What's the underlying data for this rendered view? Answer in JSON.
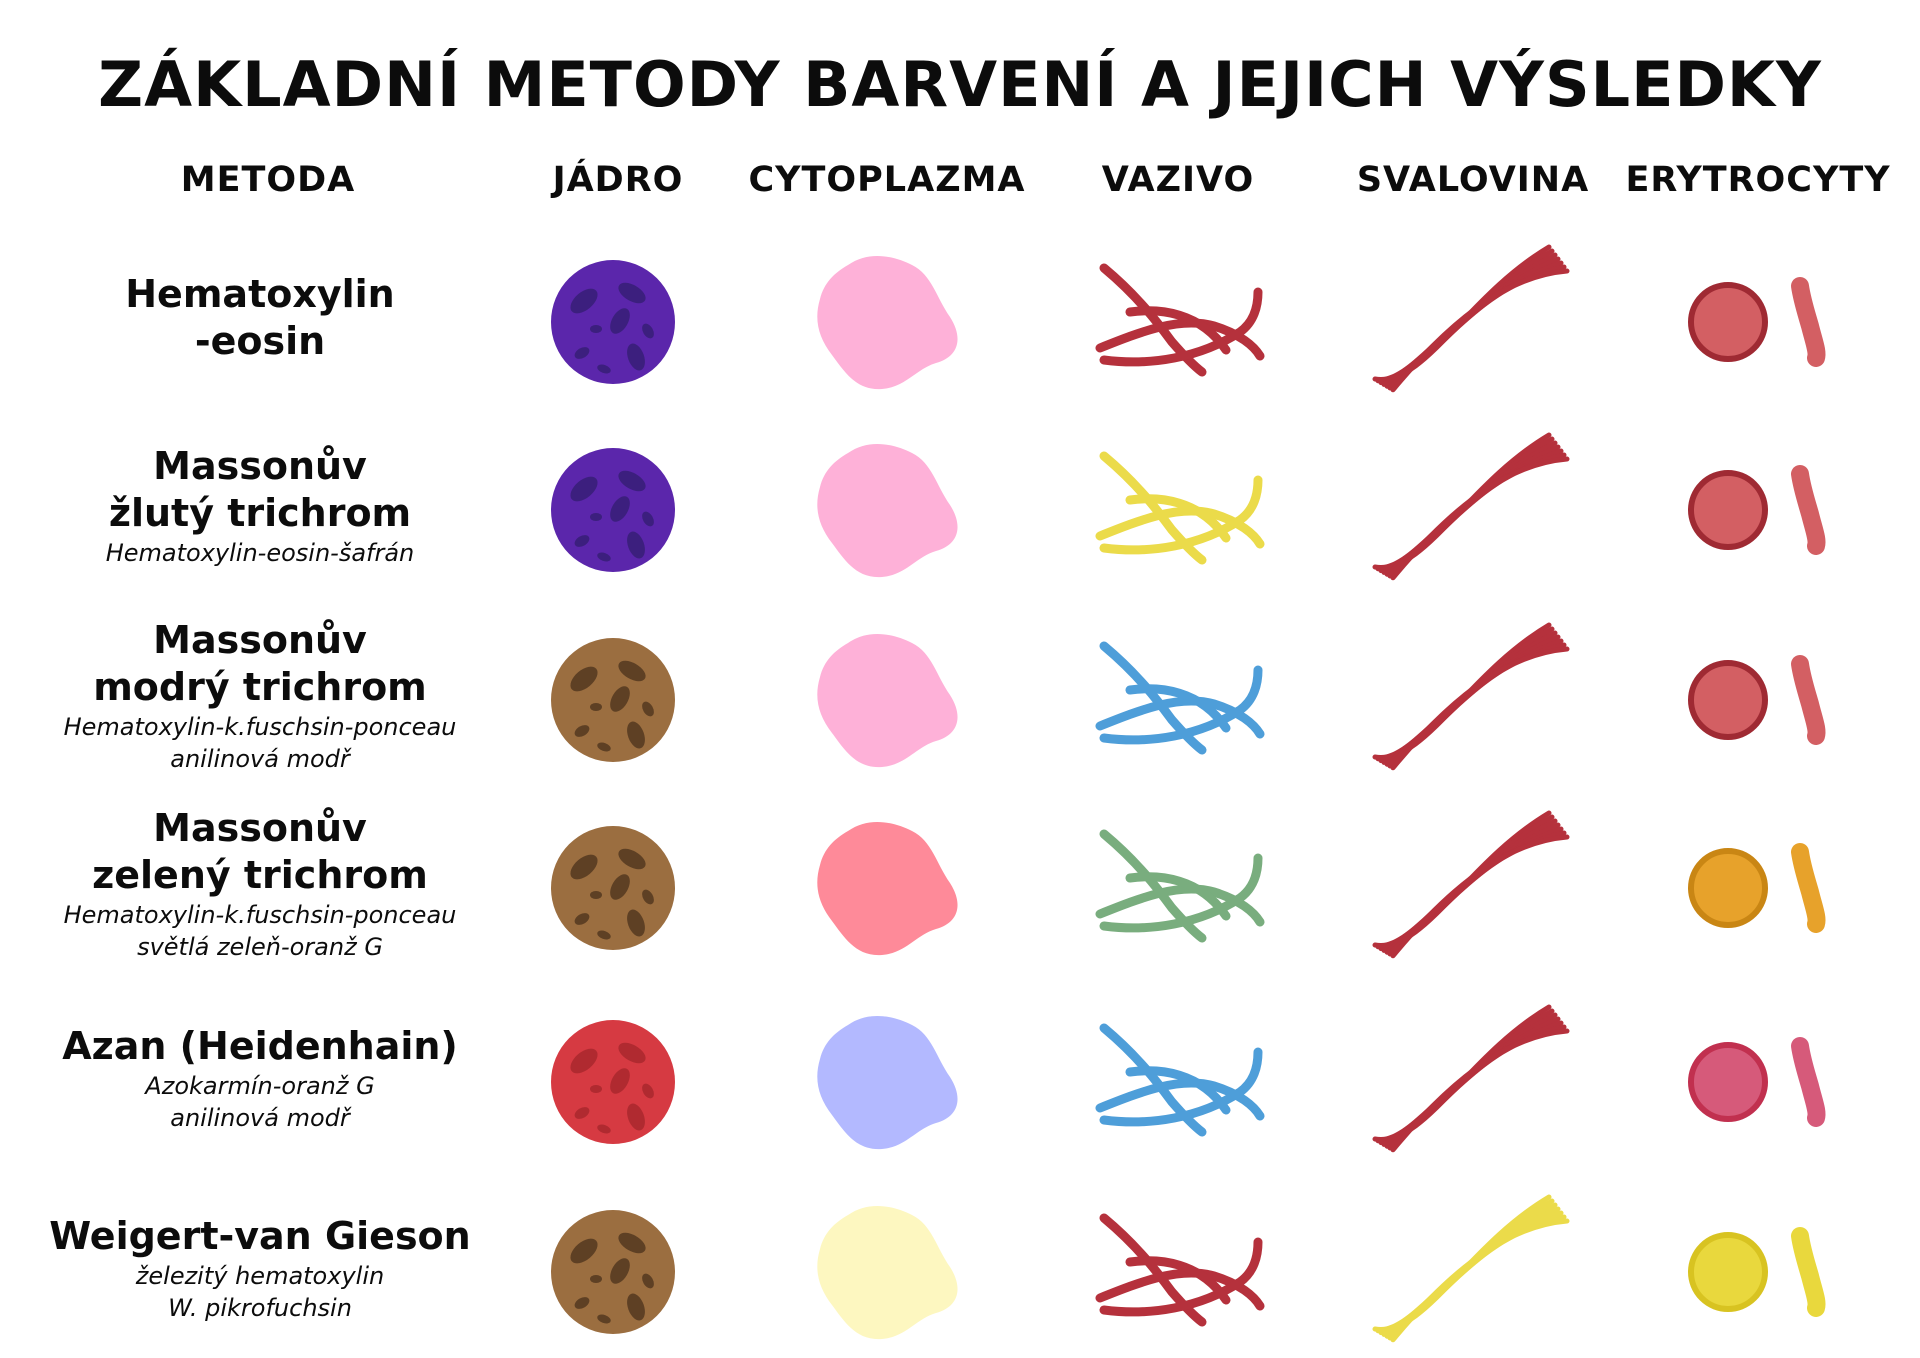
{
  "title": "ZÁKLADNÍ METODY BARVENÍ A JEJICH VÝSLEDKY",
  "columns": [
    "METODA",
    "JÁDRO",
    "CYTOPLAZMA",
    "VAZIVO",
    "SVALOVINA",
    "ERYTROCYTY"
  ],
  "rows": [
    {
      "name": "Hematoxylin\n-eosin",
      "sub": "",
      "colors": {
        "nucleus": "#5b26ab",
        "nucleus_dots": "#3c1f7e",
        "cytoplasm": "#feb1d8",
        "fibers": "#b5313c",
        "muscle": "#b5313c",
        "rbc_fill": "#d35f63",
        "rbc_edge": "#9f2a33",
        "rbc_side": "#d35f63"
      },
      "icons": [
        "nucleus-icon",
        "cytoplasm-icon",
        "fibers-icon",
        "muscle-icon",
        "erythrocyte-icon"
      ]
    },
    {
      "name": "Massonův\nžlutý trichrom",
      "sub": "Hematoxylin-eosin-šafrán",
      "colors": {
        "nucleus": "#5b26ab",
        "nucleus_dots": "#3c1f7e",
        "cytoplasm": "#feb1d8",
        "fibers": "#ebdb4a",
        "muscle": "#b5313c",
        "rbc_fill": "#d35f63",
        "rbc_edge": "#9f2a33",
        "rbc_side": "#d35f63"
      },
      "icons": [
        "nucleus-icon",
        "cytoplasm-icon",
        "fibers-icon",
        "muscle-icon",
        "erythrocyte-icon"
      ]
    },
    {
      "name": "Massonův\nmodrý trichrom",
      "sub": "Hematoxylin-k.fuschsin-ponceau\nanilinová modř",
      "colors": {
        "nucleus": "#9b6e40",
        "nucleus_dots": "#5e4024",
        "cytoplasm": "#feb1d8",
        "fibers": "#4e9ed9",
        "muscle": "#b5313c",
        "rbc_fill": "#d35f63",
        "rbc_edge": "#9f2a33",
        "rbc_side": "#d35f63"
      },
      "icons": [
        "nucleus-icon",
        "cytoplasm-icon",
        "fibers-icon",
        "muscle-icon",
        "erythrocyte-icon"
      ]
    },
    {
      "name": "Massonův\nzelený trichrom",
      "sub": "Hematoxylin-k.fuschsin-ponceau\nsvětlá zeleň-oranž G",
      "colors": {
        "nucleus": "#9b6e40",
        "nucleus_dots": "#5e4024",
        "cytoplasm": "#fe8a99",
        "fibers": "#79ad7e",
        "muscle": "#b5313c",
        "rbc_fill": "#e7a22b",
        "rbc_edge": "#c98614",
        "rbc_side": "#e7a22b"
      },
      "icons": [
        "nucleus-icon",
        "cytoplasm-icon",
        "fibers-icon",
        "muscle-icon",
        "erythrocyte-icon"
      ]
    },
    {
      "name": "Azan (Heidenhain)",
      "sub": "Azokarmín-oranž G\nanilinová modř",
      "colors": {
        "nucleus": "#d63a42",
        "nucleus_dots": "#b02a30",
        "cytoplasm": "#b3b9ff",
        "fibers": "#4e9ed9",
        "muscle": "#b5313c",
        "rbc_fill": "#d65a7a",
        "rbc_edge": "#c1304f",
        "rbc_side": "#d65a7a"
      },
      "icons": [
        "nucleus-icon",
        "cytoplasm-icon",
        "fibers-icon",
        "muscle-icon",
        "erythrocyte-icon"
      ]
    },
    {
      "name": "Weigert-van Gieson",
      "sub": "železitý hematoxylin\nW. pikrofuchsin",
      "colors": {
        "nucleus": "#9b6e40",
        "nucleus_dots": "#5e4024",
        "cytoplasm": "#fdf7c0",
        "fibers": "#b5313c",
        "muscle": "#ebdb4a",
        "rbc_fill": "#e9d83d",
        "rbc_edge": "#d8c321",
        "rbc_side": "#e9d83d"
      },
      "icons": [
        "nucleus-icon",
        "cytoplasm-icon",
        "fibers-icon",
        "muscle-icon",
        "erythrocyte-icon"
      ]
    }
  ]
}
